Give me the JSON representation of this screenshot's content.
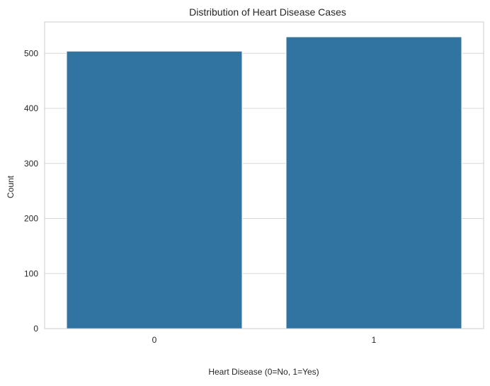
{
  "chart_data": {
    "type": "bar",
    "title": "Distribution of Heart Disease Cases",
    "xlabel": "Heart Disease (0=No, 1=Yes)",
    "ylabel": "Count",
    "categories": [
      "0",
      "1"
    ],
    "values": [
      504,
      530
    ],
    "ylim": [
      0,
      557
    ],
    "yticks": [
      0,
      100,
      200,
      300,
      400,
      500
    ],
    "grid": "horizontal",
    "bar_color": "#3274a1",
    "grid_color": "#d8d8d8",
    "spine_color": "#cccccc"
  }
}
